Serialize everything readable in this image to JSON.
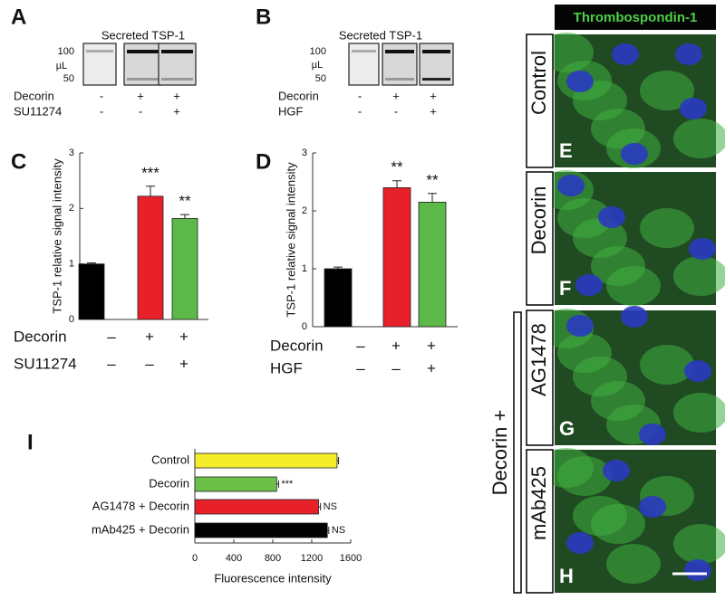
{
  "panels": {
    "A": {
      "letter": "A",
      "title": "Secreted TSP-1",
      "unit": "µL",
      "markers": [
        100,
        50
      ],
      "rows": [
        {
          "name": "Decorin",
          "signs": [
            "-",
            "+",
            "+"
          ]
        },
        {
          "name": "SU11274",
          "signs": [
            "-",
            "-",
            "+"
          ]
        }
      ]
    },
    "B": {
      "letter": "B",
      "title": "Secreted TSP-1",
      "unit": "µL",
      "markers": [
        100,
        50
      ],
      "rows": [
        {
          "name": "Decorin",
          "signs": [
            "-",
            "+",
            "+"
          ]
        },
        {
          "name": "HGF",
          "signs": [
            "-",
            "-",
            "+"
          ]
        }
      ]
    },
    "images": {
      "header": "Thrombospondin-1",
      "group_label": "Decorin +",
      "panels": [
        {
          "letter": "E",
          "label": "Control"
        },
        {
          "letter": "F",
          "label": "Decorin"
        },
        {
          "letter": "G",
          "label": "AG1478"
        },
        {
          "letter": "H",
          "label": "mAb425"
        }
      ]
    }
  },
  "chart_data": [
    {
      "type": "bar",
      "letter": "C",
      "ylabel": "TSP-1 relative signal intensity",
      "values": [
        1,
        2.22,
        1.82
      ],
      "errors": [
        0.02,
        0.18,
        0.07
      ],
      "colors": [
        "#000000",
        "#e8202a",
        "#5cb848"
      ],
      "annotations": [
        null,
        "***",
        "**"
      ],
      "ylim": [
        0,
        3
      ],
      "yticks": [
        0,
        1,
        2,
        3
      ],
      "conditions": [
        {
          "name": "Decorin",
          "signs": [
            "–",
            "+",
            "+"
          ]
        },
        {
          "name": "SU11274",
          "signs": [
            "–",
            "–",
            "+"
          ]
        }
      ]
    },
    {
      "type": "bar",
      "letter": "D",
      "ylabel": "TSP-1 relative signal intensity",
      "values": [
        1,
        2.4,
        2.15
      ],
      "errors": [
        0.03,
        0.12,
        0.15
      ],
      "colors": [
        "#000000",
        "#e8202a",
        "#5cb848"
      ],
      "annotations": [
        null,
        "**",
        "**"
      ],
      "ylim": [
        0,
        3
      ],
      "yticks": [
        0,
        1,
        2,
        3
      ],
      "conditions": [
        {
          "name": "Decorin",
          "signs": [
            "–",
            "+",
            "+"
          ]
        },
        {
          "name": "HGF",
          "signs": [
            "–",
            "–",
            "+"
          ]
        }
      ]
    },
    {
      "type": "hbar",
      "letter": "I",
      "xlabel": "Fluorescence intensity",
      "categories": [
        "Control",
        "Decorin",
        "AG1478 + Decorin",
        "mAb425 + Decorin"
      ],
      "values": [
        1460,
        840,
        1270,
        1360
      ],
      "errors": [
        15,
        20,
        20,
        15
      ],
      "colors": [
        "#f5ec2a",
        "#6cc04a",
        "#e8202a",
        "#000000"
      ],
      "annotations": [
        null,
        "***",
        "NS",
        "NS"
      ],
      "xlim": [
        0,
        1600
      ],
      "xticks": [
        0,
        400,
        800,
        1200,
        1600
      ]
    }
  ]
}
